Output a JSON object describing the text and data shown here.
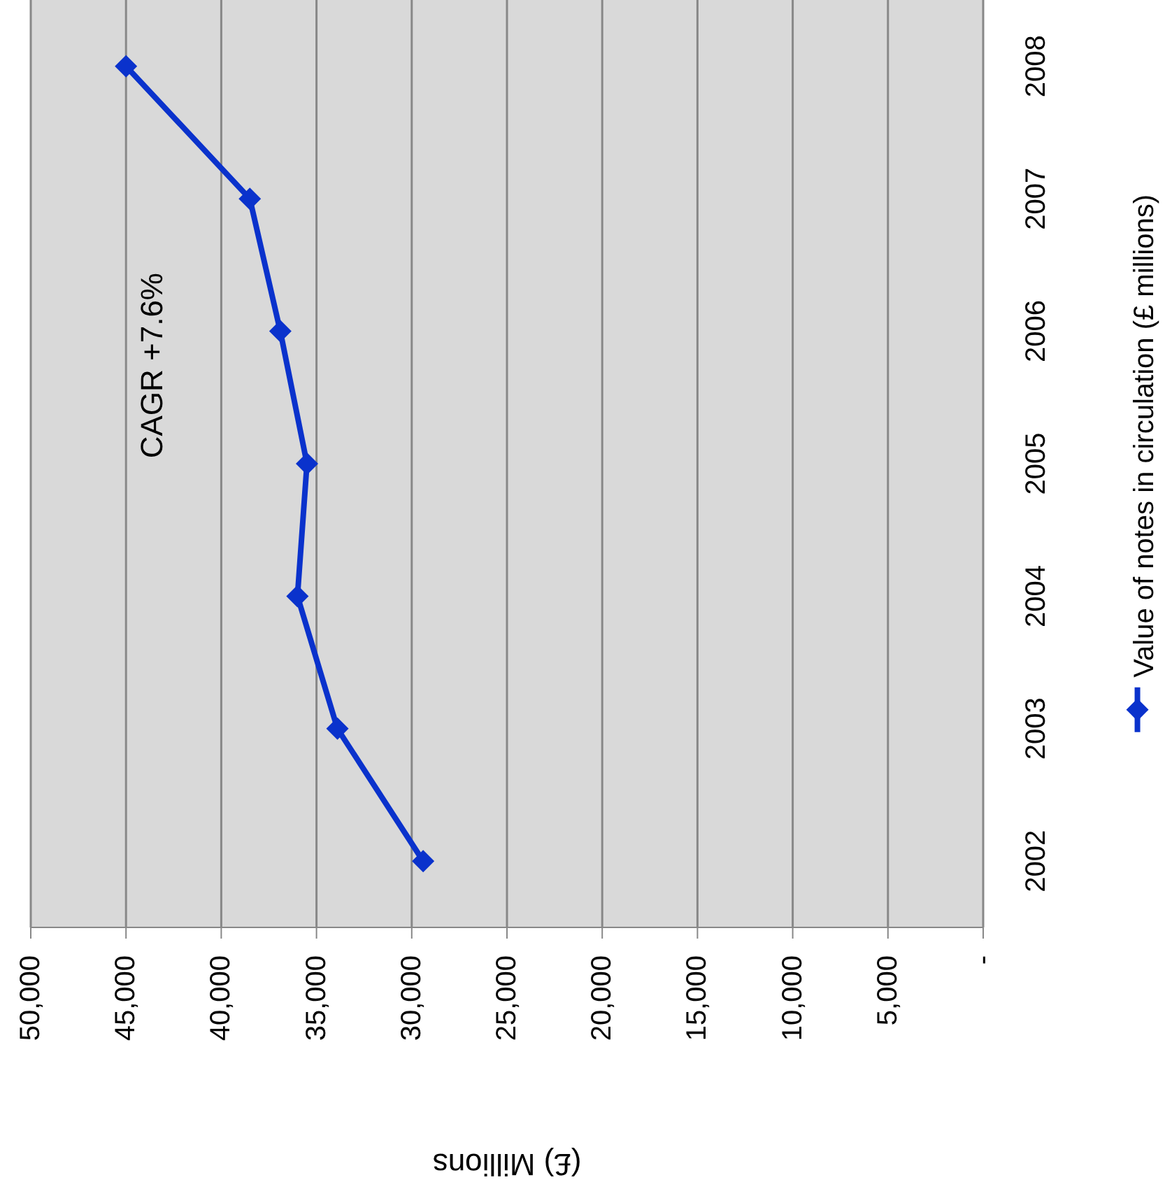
{
  "chart_data": {
    "type": "line",
    "orientation": "horizontal",
    "xlabel": "(£) Millions",
    "categories": [
      "2008",
      "2007",
      "2006",
      "2005",
      "2004",
      "2003",
      "2002"
    ],
    "series": [
      {
        "name": "Value of notes in circulation (£ millions)",
        "color": "#0a32cc",
        "values": [
          45000,
          38500,
          36900,
          35500,
          36000,
          33900,
          29400
        ]
      }
    ],
    "xlim": [
      50000,
      0
    ],
    "xticks": [
      {
        "value": 50000,
        "label": "50,000"
      },
      {
        "value": 45000,
        "label": "45,000"
      },
      {
        "value": 40000,
        "label": "40,000"
      },
      {
        "value": 35000,
        "label": "35,000"
      },
      {
        "value": 30000,
        "label": "30,000"
      },
      {
        "value": 25000,
        "label": "25,000"
      },
      {
        "value": 20000,
        "label": "20,000"
      },
      {
        "value": 15000,
        "label": "15,000"
      },
      {
        "value": 10000,
        "label": "10,000"
      },
      {
        "value": 5000,
        "label": "5,000"
      },
      {
        "value": 0,
        "label": "-"
      }
    ],
    "grid": "x",
    "legend": "right",
    "marker": "diamond",
    "line_style": "solid",
    "annotations": [
      "CAGR +7.6%"
    ]
  }
}
